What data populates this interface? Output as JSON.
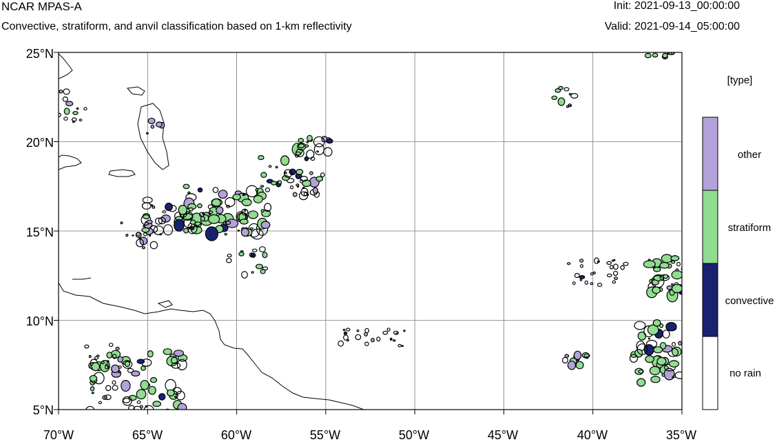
{
  "header": {
    "title": "NCAR MPAS-A",
    "subtitle": "Convective, stratiform, and anvil classification based on 1-km reflectivity",
    "init": "Init: 2021-09-13_00:00:00",
    "valid": "Valid: 2021-09-14_05:00:00"
  },
  "map": {
    "lat_ticks": [
      "25°N",
      "20°N",
      "15°N",
      "10°N",
      "5°N"
    ],
    "lon_ticks": [
      "70°W",
      "65°W",
      "60°W",
      "55°W",
      "50°W",
      "45°W",
      "40°W",
      "35°W"
    ],
    "lat_values": [
      25,
      20,
      15,
      10,
      5
    ],
    "lon_values": [
      -70,
      -65,
      -60,
      -55,
      -50,
      -45,
      -40,
      -35
    ],
    "extent": {
      "lon_min": -70,
      "lon_max": -35,
      "lat_min": 5,
      "lat_max": 25
    }
  },
  "colorbar": {
    "title": "[type]",
    "classes": [
      {
        "label": "other",
        "color": "#b3a2d9"
      },
      {
        "label": "stratiform",
        "color": "#90dc90"
      },
      {
        "label": "convective",
        "color": "#1a2270"
      },
      {
        "label": "no rain",
        "color": "#ffffff"
      }
    ]
  },
  "colors": {
    "stratiform": "#90dc90",
    "other": "#b3a2d9",
    "convective": "#1a2270",
    "outline": "#000000",
    "grid": "#777777"
  }
}
